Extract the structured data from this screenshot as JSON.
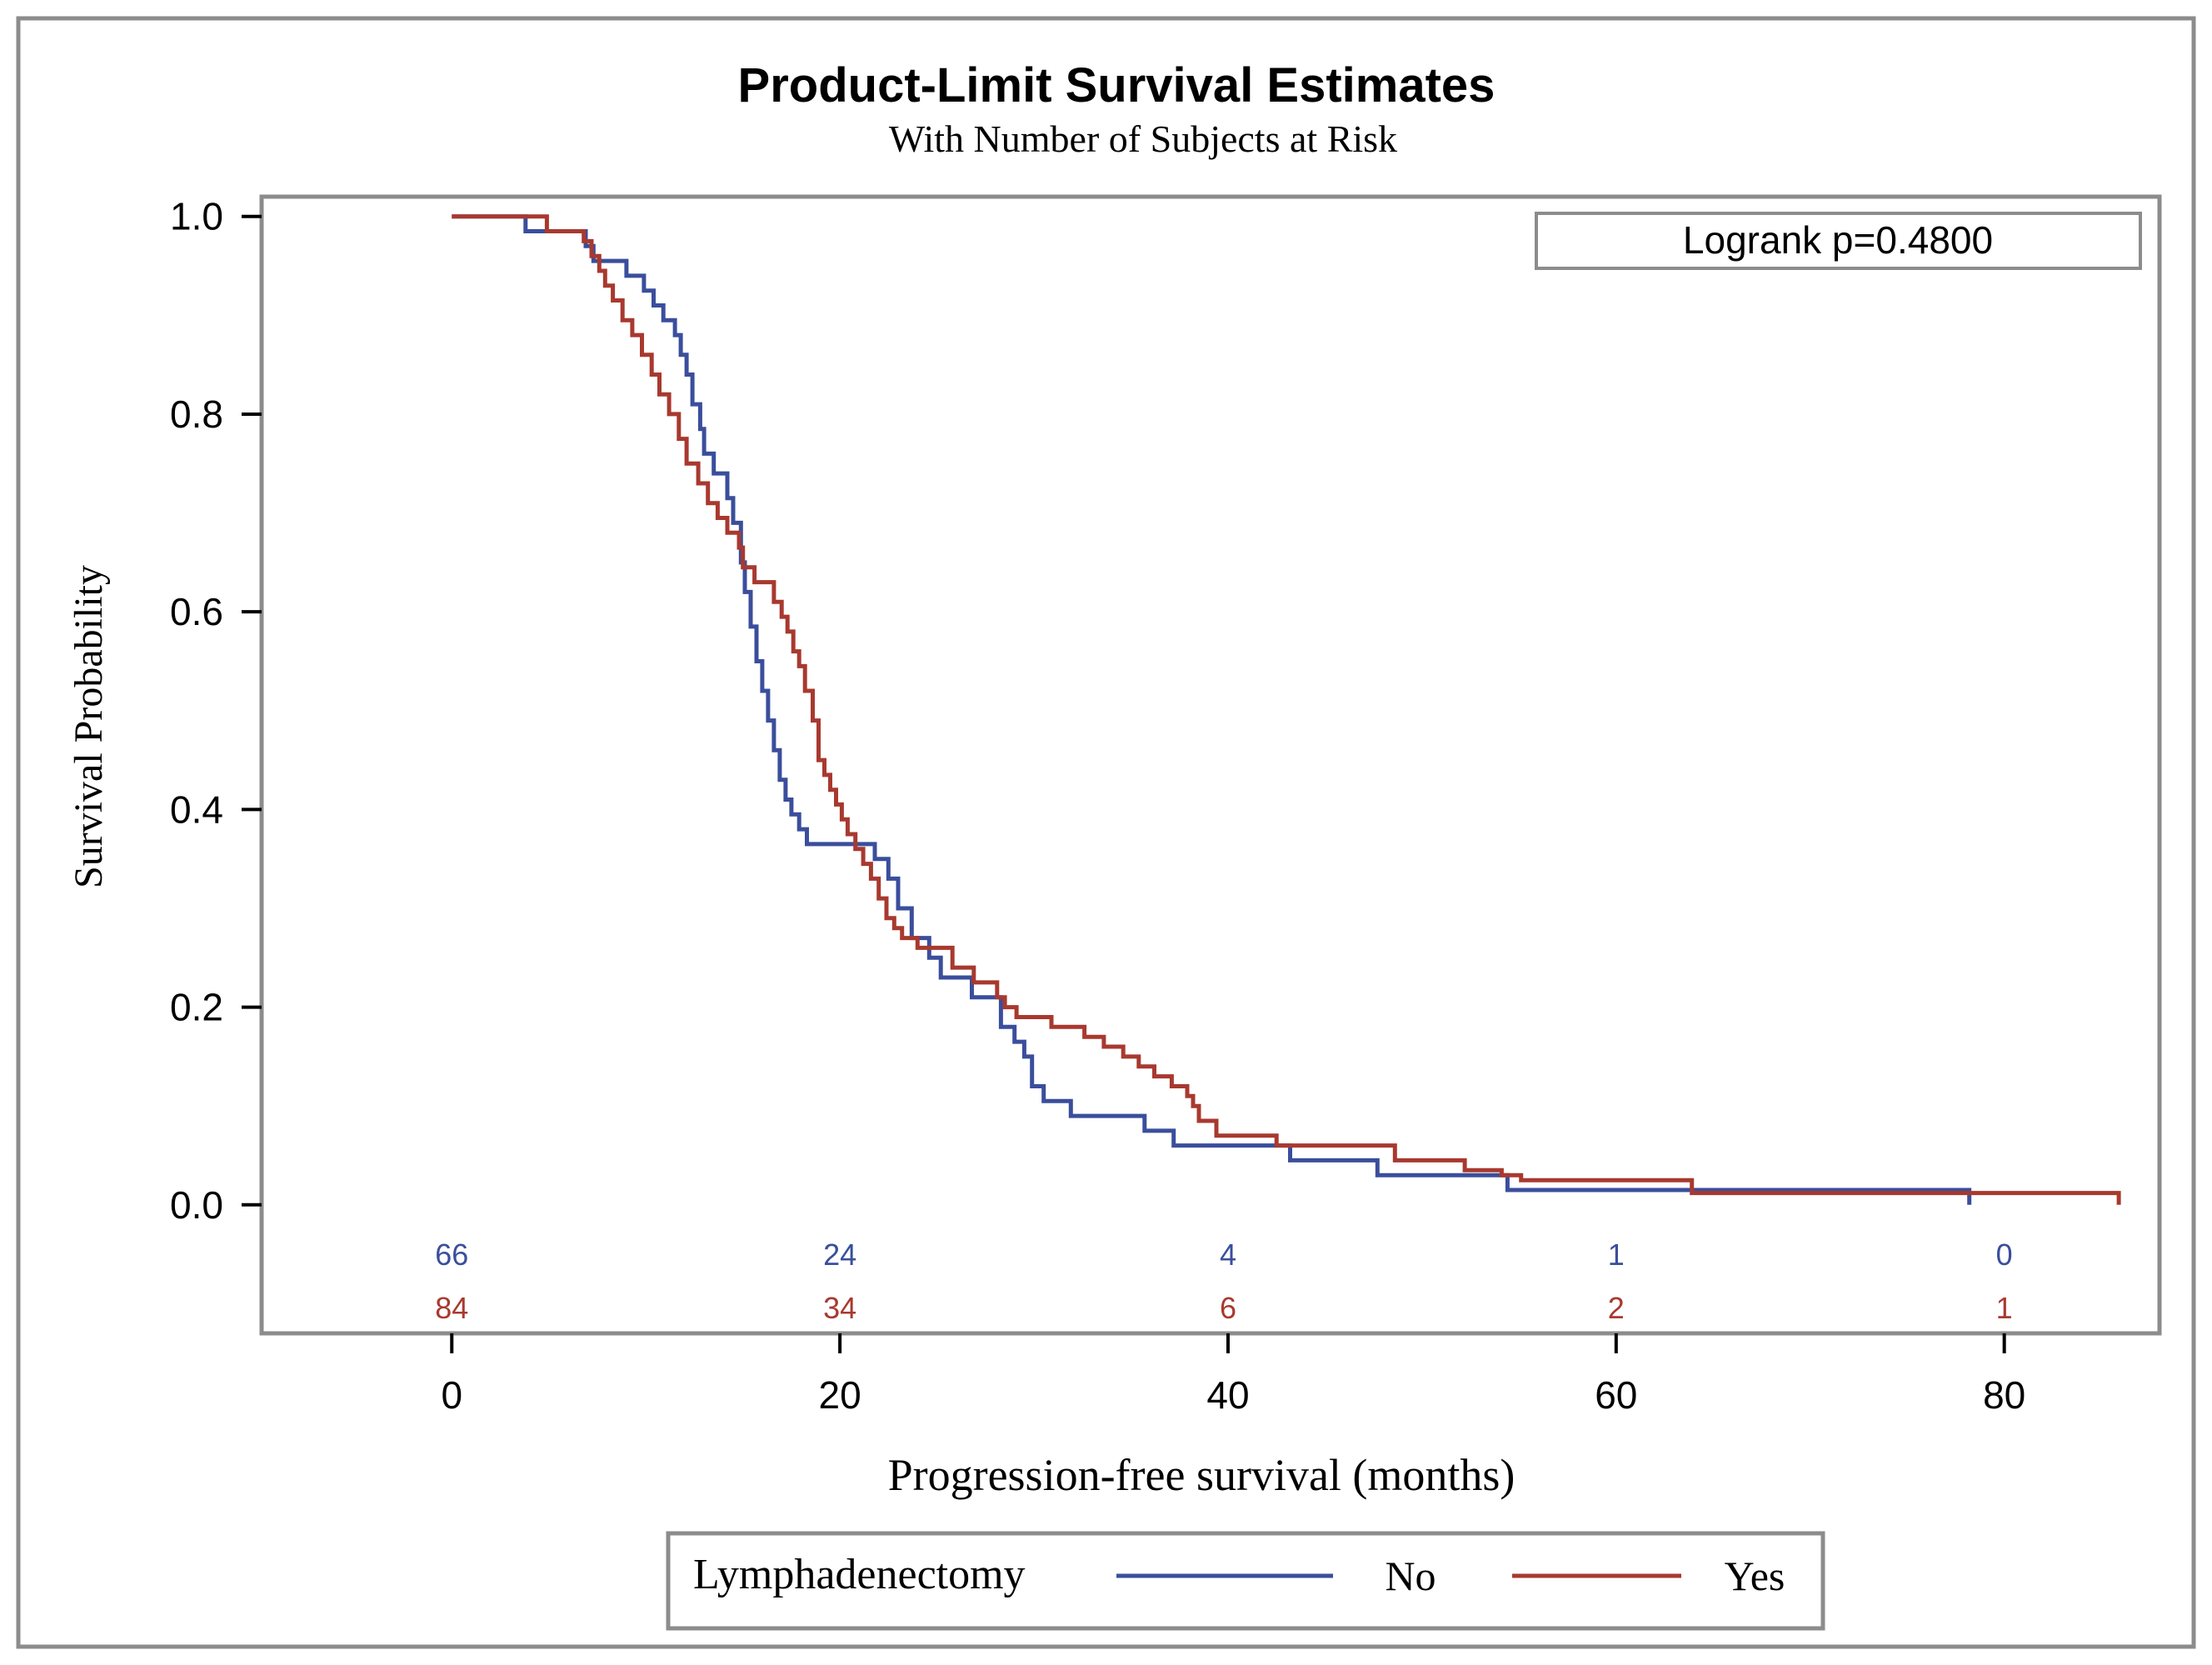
{
  "chart_data": {
    "type": "line",
    "title": "Product-Limit Survival Estimates",
    "subtitle": "With Number of Subjects at Risk",
    "xlabel": "Progression-free survival (months)",
    "ylabel": "Survival Probability",
    "xlim": [
      -9.8,
      88
    ],
    "ylim": [
      -0.13,
      1.02
    ],
    "xticks": [
      0,
      20,
      40,
      60,
      80
    ],
    "xtick_labels": [
      "0",
      "20",
      "40",
      "60",
      "80"
    ],
    "yticks": [
      0.0,
      0.2,
      0.4,
      0.6,
      0.8,
      1.0
    ],
    "ytick_labels": [
      "0.0",
      "0.2",
      "0.4",
      "0.6",
      "0.8",
      "1.0"
    ],
    "annotation": "Logrank p=0.4800",
    "legend": {
      "title": "Lymphadenectomy",
      "position": "bottom",
      "entries": [
        "No",
        "Yes"
      ]
    },
    "at_risk": {
      "times": [
        0,
        20,
        40,
        60,
        80
      ],
      "rows": [
        {
          "name": "No",
          "counts": [
            "66",
            "24",
            "4",
            "1",
            "0"
          ]
        },
        {
          "name": "Yes",
          "counts": [
            "84",
            "34",
            "6",
            "2",
            "1"
          ]
        }
      ]
    },
    "series": [
      {
        "name": "No",
        "color": "#3a4e9c",
        "x": [
          0,
          3.8,
          6.9,
          7.3,
          9.0,
          9.9,
          10.4,
          10.9,
          11.5,
          11.8,
          12.1,
          12.4,
          12.8,
          13.0,
          13.5,
          14.2,
          14.5,
          14.9,
          15.1,
          15.4,
          15.7,
          16.0,
          16.3,
          16.6,
          16.9,
          17.2,
          17.5,
          17.9,
          18.3,
          19.0,
          21.8,
          22.5,
          23.0,
          23.7,
          24.6,
          25.2,
          26.8,
          28.3,
          29.0,
          29.5,
          29.9,
          30.5,
          31.9,
          35.7,
          37.2,
          41.4,
          43.2,
          47.7,
          54.4,
          78.2
        ],
        "y": [
          1.0,
          0.985,
          0.97,
          0.955,
          0.94,
          0.925,
          0.91,
          0.895,
          0.88,
          0.86,
          0.84,
          0.81,
          0.785,
          0.76,
          0.74,
          0.715,
          0.69,
          0.65,
          0.62,
          0.585,
          0.55,
          0.52,
          0.49,
          0.46,
          0.43,
          0.41,
          0.395,
          0.38,
          0.365,
          0.365,
          0.35,
          0.33,
          0.3,
          0.27,
          0.25,
          0.23,
          0.21,
          0.18,
          0.165,
          0.15,
          0.12,
          0.105,
          0.09,
          0.075,
          0.06,
          0.06,
          0.045,
          0.03,
          0.015,
          0.0
        ]
      },
      {
        "name": "Yes",
        "color": "#a8392f",
        "x": [
          0,
          4.9,
          6.8,
          7.2,
          7.6,
          7.9,
          8.3,
          8.8,
          9.3,
          9.8,
          10.3,
          10.7,
          11.2,
          11.7,
          12.1,
          12.7,
          13.2,
          13.7,
          14.2,
          14.8,
          15.0,
          15.6,
          16.6,
          17.0,
          17.3,
          17.6,
          17.9,
          18.2,
          18.6,
          18.9,
          19.2,
          19.5,
          19.8,
          20.1,
          20.4,
          20.8,
          21.2,
          21.6,
          22.0,
          22.4,
          22.8,
          23.2,
          24.0,
          25.8,
          26.9,
          28.1,
          28.5,
          29.1,
          30.9,
          32.6,
          33.6,
          34.6,
          35.4,
          36.2,
          37.1,
          37.9,
          38.2,
          38.5,
          39.4,
          42.5,
          48.6,
          52.2,
          54.1,
          55.1,
          63.9,
          85.9
        ],
        "y": [
          1.0,
          0.985,
          0.975,
          0.96,
          0.945,
          0.93,
          0.915,
          0.895,
          0.88,
          0.86,
          0.84,
          0.82,
          0.8,
          0.775,
          0.75,
          0.73,
          0.71,
          0.695,
          0.68,
          0.665,
          0.645,
          0.63,
          0.61,
          0.595,
          0.58,
          0.56,
          0.545,
          0.52,
          0.49,
          0.45,
          0.435,
          0.42,
          0.405,
          0.39,
          0.375,
          0.36,
          0.345,
          0.33,
          0.31,
          0.29,
          0.28,
          0.27,
          0.26,
          0.24,
          0.225,
          0.21,
          0.2,
          0.19,
          0.18,
          0.17,
          0.16,
          0.15,
          0.14,
          0.13,
          0.12,
          0.11,
          0.1,
          0.085,
          0.07,
          0.06,
          0.045,
          0.035,
          0.03,
          0.025,
          0.012,
          0.0
        ]
      }
    ]
  }
}
